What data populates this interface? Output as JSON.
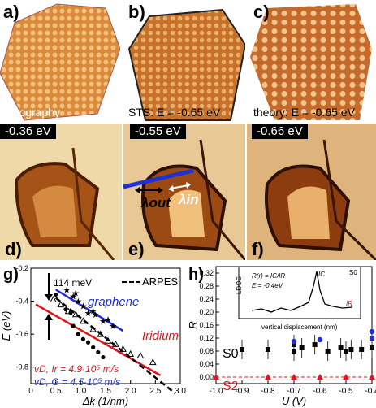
{
  "panels_top": [
    {
      "letter": "a)",
      "caption": "topography"
    },
    {
      "letter": "b)",
      "caption": "STS: E = -0.65 eV"
    },
    {
      "letter": "c)",
      "caption": "theory: E = -0.65 eV"
    }
  ],
  "panels_mid": [
    {
      "letter": "d)",
      "energy": "-0.36 eV"
    },
    {
      "letter": "e)",
      "energy": "-0.55 eV",
      "label_out": "λout",
      "label_in": "λin"
    },
    {
      "letter": "f)",
      "energy": "-0.66 eV"
    }
  ],
  "panel_g": {
    "letter": "g)",
    "annotation_meV": "114 meV",
    "legend_arpes": "ARPES",
    "series_graphene": "graphene",
    "series_iridium": "Iridium",
    "vel_ir": "vD, Ir = 4.9·10⁵ m/s",
    "vel_g": "vD, G = 4.5·10⁵ m/s",
    "colors": {
      "graphene": "#1f2fd6",
      "iridium": "#e0141a"
    }
  },
  "panel_h": {
    "letter": "h)",
    "inset_formula": "R(r) = IC/IR",
    "inset_energy": "E = -0.4eV",
    "inset_x_label": "vertical displacement (nm)",
    "inset_y_label": "LDOS",
    "inset_s0": "S0",
    "inset_ic": "IC",
    "inset_ir": "IR",
    "label_s0": "S0",
    "label_s2": "S2"
  },
  "chart_data": [
    {
      "type": "scatter",
      "panel": "g",
      "xlabel": "Δk (1/nm)",
      "ylabel": "E (eV)",
      "xlim": [
        0,
        3.0
      ],
      "ylim": [
        -0.9,
        -0.2
      ],
      "x_ticks": [
        "0",
        "0.5",
        "1.0",
        "1.5",
        "2.0",
        "2.5",
        "3.0"
      ],
      "y_ticks": [
        "-0.2",
        "-0.4",
        "-0.6",
        "-0.8"
      ],
      "series": [
        {
          "name": "graphene",
          "marker": "star",
          "color": "#000000",
          "x": [
            0.72,
            0.85,
            0.95,
            1.05,
            1.15,
            1.3,
            1.45,
            1.55,
            1.65,
            0.9,
            1.25
          ],
          "y": [
            -0.33,
            -0.37,
            -0.4,
            -0.43,
            -0.47,
            -0.48,
            -0.52,
            -0.51,
            -0.55,
            -0.35,
            -0.46
          ]
        },
        {
          "name": "Iridium",
          "marker": "dot",
          "color": "#000000",
          "x": [
            0.5,
            0.7,
            0.85,
            0.95,
            1.05,
            1.15,
            1.25,
            1.35,
            1.45,
            0.8
          ],
          "y": [
            -0.36,
            -0.45,
            -0.55,
            -0.6,
            -0.63,
            -0.65,
            -0.68,
            -0.71,
            -0.74,
            -0.47
          ]
        },
        {
          "name": "",
          "marker": "open-triangle",
          "color": "#000000",
          "x": [
            0.45,
            0.6,
            0.75,
            0.9,
            1.05,
            1.25,
            1.4,
            1.55,
            1.7,
            1.85,
            2.0,
            2.2,
            2.45
          ],
          "y": [
            -0.39,
            -0.42,
            -0.46,
            -0.48,
            -0.52,
            -0.57,
            -0.6,
            -0.64,
            -0.66,
            -0.69,
            -0.72,
            -0.73,
            -0.77
          ]
        }
      ],
      "lines": [
        {
          "name": "graphene fit",
          "color": "#1f2fd6",
          "x": [
            0.5,
            1.85
          ],
          "y": [
            -0.33,
            -0.58
          ]
        },
        {
          "name": "Iridium fit",
          "color": "#e0141a",
          "x": [
            0.1,
            2.6
          ],
          "y": [
            -0.42,
            -0.85
          ]
        },
        {
          "name": "ARPES",
          "color": "#000000",
          "dash": true,
          "x": [
            0.5,
            2.9
          ],
          "y": [
            -0.38,
            -0.96
          ]
        }
      ]
    },
    {
      "type": "scatter",
      "panel": "h",
      "xlabel": "U (V)",
      "ylabel": "R",
      "xlim": [
        -1.0,
        -0.4
      ],
      "ylim": [
        -0.02,
        0.34
      ],
      "x_ticks": [
        "-1.0",
        "-0.9",
        "-0.8",
        "-0.7",
        "-0.6",
        "-0.5",
        "-0.4"
      ],
      "y_ticks": [
        "0.00",
        "0.04",
        "0.08",
        "0.12",
        "0.16",
        "0.20",
        "0.24",
        "0.28",
        "0.32"
      ],
      "series": [
        {
          "name": "S0",
          "marker": "square",
          "color": "#000000",
          "x": [
            -0.9,
            -0.8,
            -0.7,
            -0.7,
            -0.67,
            -0.62,
            -0.57,
            -0.52,
            -0.5,
            -0.48,
            -0.44,
            -0.4,
            -0.4
          ],
          "y": [
            0.085,
            0.085,
            0.1,
            0.08,
            0.09,
            0.1,
            0.08,
            0.09,
            0.08,
            0.085,
            0.085,
            0.09,
            0.12
          ]
        },
        {
          "name": "",
          "marker": "blue-dot",
          "color": "#1f2fd6",
          "x": [
            -0.7,
            -0.6,
            -0.4,
            -0.4
          ],
          "y": [
            0.11,
            0.115,
            0.12,
            0.14
          ]
        },
        {
          "name": "S2",
          "marker": "triangle",
          "color": "#e0141a",
          "x": [
            -1.0,
            -0.8,
            -0.7,
            -0.6,
            -0.5,
            -0.4
          ],
          "y": [
            0.0,
            0.0,
            0.0,
            0.0,
            0.0,
            0.0
          ]
        }
      ]
    }
  ]
}
